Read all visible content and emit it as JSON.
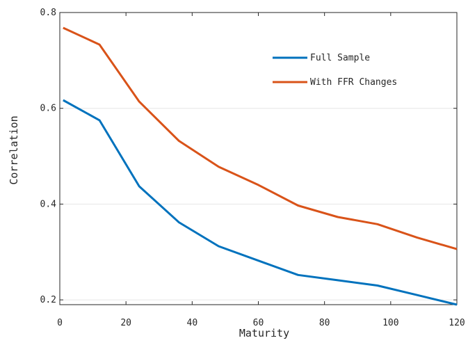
{
  "chart_data": {
    "type": "line",
    "title": "",
    "xlabel": "Maturity",
    "ylabel": "Correlation",
    "xlim": [
      0,
      120
    ],
    "ylim": [
      0.19,
      0.8
    ],
    "xticks": [
      0,
      20,
      40,
      60,
      80,
      100,
      120
    ],
    "xtick_labels": [
      "0",
      "20",
      "40",
      "60",
      "80",
      "100",
      "120"
    ],
    "yticks": [
      0.2,
      0.4,
      0.6,
      0.8
    ],
    "ytick_labels": [
      "0.2",
      "0.4",
      "0.6",
      "0.8"
    ],
    "grid": "horizontal",
    "legend_position": "top-right",
    "series": [
      {
        "name": "Full Sample",
        "color": "#0072BD",
        "x": [
          1,
          12,
          24,
          36,
          48,
          60,
          72,
          84,
          96,
          108,
          120
        ],
        "y": [
          0.617,
          0.575,
          0.437,
          0.362,
          0.312,
          0.282,
          0.252,
          0.241,
          0.23,
          0.21,
          0.19
        ]
      },
      {
        "name": "With FFR Changes",
        "color": "#D95319",
        "x": [
          1,
          12,
          24,
          36,
          48,
          60,
          72,
          84,
          96,
          108,
          120
        ],
        "y": [
          0.768,
          0.733,
          0.614,
          0.532,
          0.478,
          0.44,
          0.397,
          0.373,
          0.358,
          0.33,
          0.306
        ]
      }
    ]
  }
}
